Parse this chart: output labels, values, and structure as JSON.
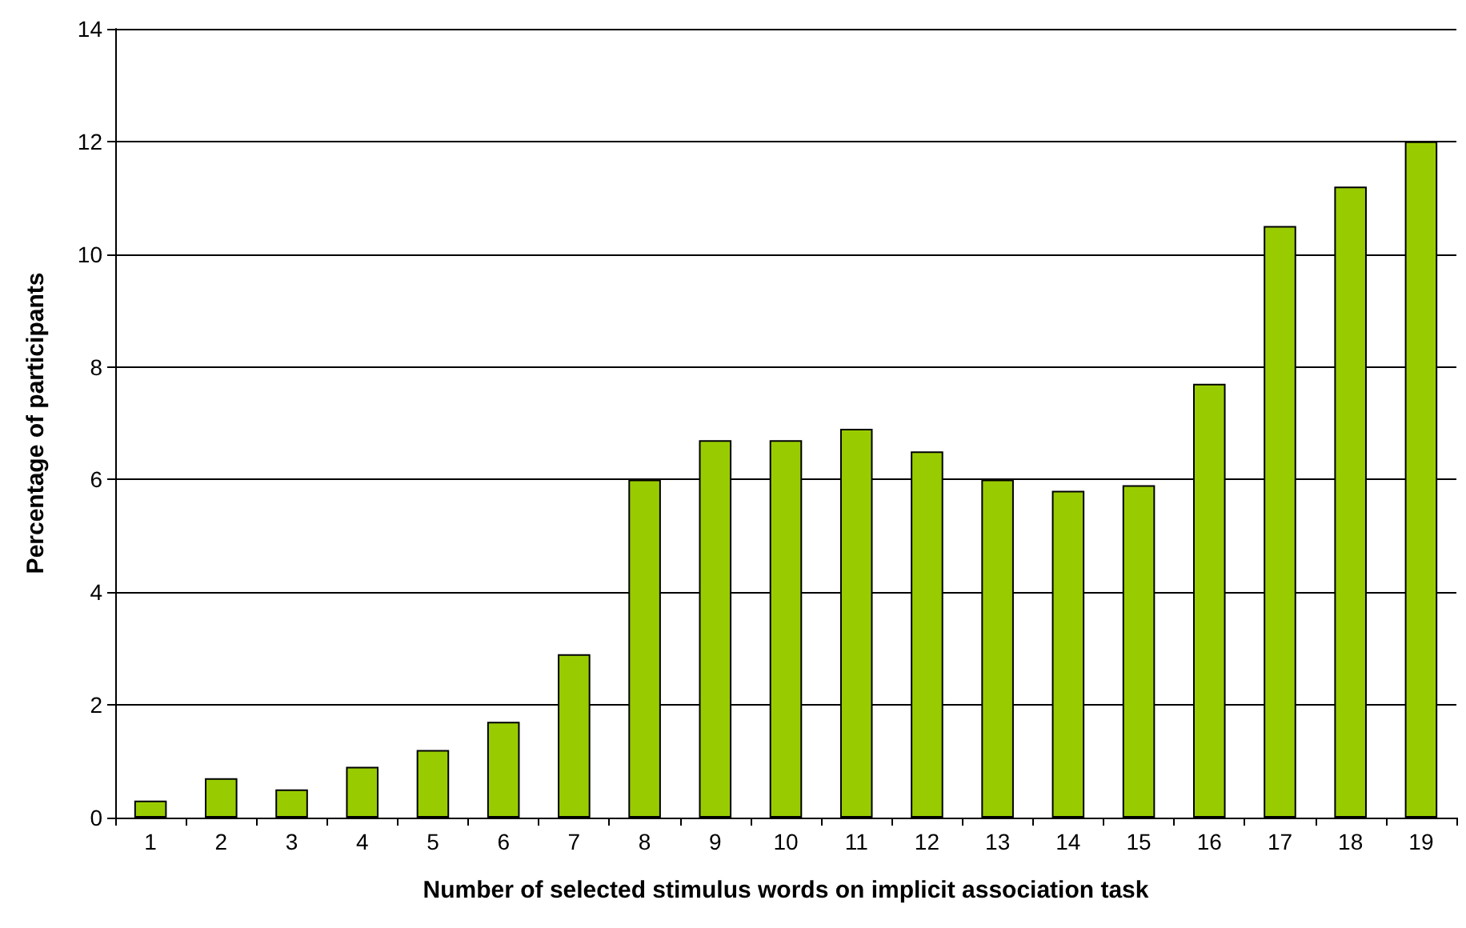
{
  "chart_data": {
    "type": "bar",
    "xlabel": "Number of selected stimulus words on implicit association task",
    "ylabel": "Percentage of participants",
    "categories": [
      "1",
      "2",
      "3",
      "4",
      "5",
      "6",
      "7",
      "8",
      "9",
      "10",
      "11",
      "12",
      "13",
      "14",
      "15",
      "16",
      "17",
      "18",
      "19"
    ],
    "values": [
      0.3,
      0.7,
      0.5,
      0.9,
      1.2,
      1.7,
      2.9,
      6.0,
      6.7,
      6.7,
      6.9,
      6.5,
      6.0,
      5.8,
      5.9,
      7.7,
      10.5,
      11.2,
      12.0
    ],
    "color": "#99cc00",
    "ylim": [
      0,
      14
    ],
    "yticks": [
      0,
      2,
      4,
      6,
      8,
      10,
      12,
      14
    ],
    "grid": "y"
  }
}
